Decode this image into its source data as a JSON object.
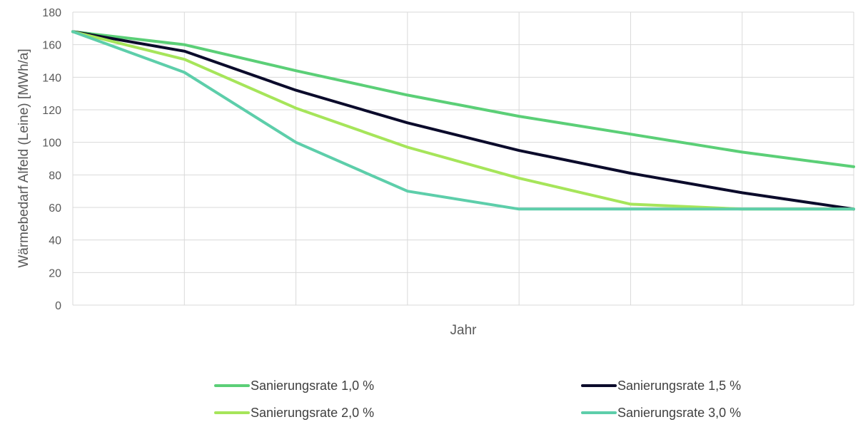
{
  "chart_data": {
    "type": "line",
    "title": "",
    "xlabel": "Jahr",
    "ylabel": "Wärmebedarf Alfeld (Leine) [MWh/a]",
    "ylim": [
      0,
      180
    ],
    "y_ticks": [
      "0",
      "20",
      "40",
      "60",
      "80",
      "100",
      "120",
      "140",
      "160",
      "180"
    ],
    "x": [
      0,
      1,
      2,
      3,
      4,
      5,
      6,
      7
    ],
    "grid": true,
    "legend_position": "bottom",
    "series": [
      {
        "name": "Sanierungsrate 1,0 %",
        "color": "#5BCF77",
        "values": [
          168,
          160,
          144,
          129,
          116,
          105,
          94,
          85
        ]
      },
      {
        "name": "Sanierungsrate 1,5 %",
        "color": "#0B0B2B",
        "values": [
          168,
          156,
          132,
          112,
          95,
          81,
          69,
          59
        ]
      },
      {
        "name": "Sanierungsrate 2,0 %",
        "color": "#A6E55A",
        "values": [
          168,
          151,
          121,
          97,
          78,
          62,
          59,
          59
        ]
      },
      {
        "name": "Sanierungsrate 3,0 %",
        "color": "#5DCEAA",
        "values": [
          168,
          143,
          100,
          70,
          59,
          59,
          59,
          59
        ]
      }
    ]
  }
}
